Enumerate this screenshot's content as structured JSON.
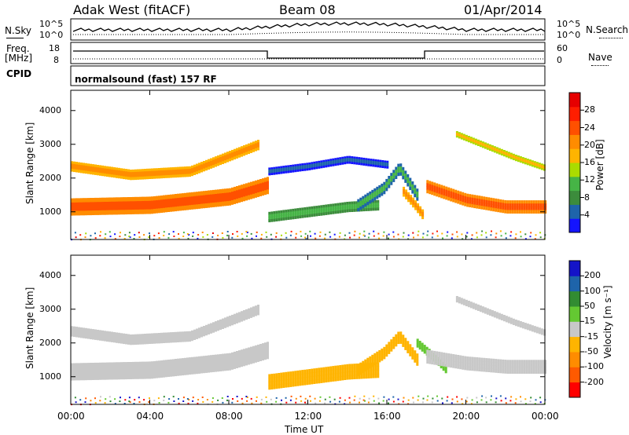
{
  "header": {
    "title": "Adak West (fitACF)",
    "beam": "Beam 08",
    "date": "01/Apr/2014"
  },
  "left_labels": {
    "nsky": "N.Sky",
    "freq": "Freq.",
    "freq_unit": "[MHz]",
    "cpid": "CPID"
  },
  "right_labels": {
    "nsearch": "N.Search",
    "nave": "Nave"
  },
  "noise_axis": {
    "left_ticks": [
      "10^5",
      "10^0"
    ],
    "right_ticks": [
      "10^5",
      "10^0"
    ]
  },
  "freq_axis": {
    "left_ticks": [
      "18",
      "8"
    ],
    "right_ticks": [
      "60",
      "0"
    ]
  },
  "cpid_label": "normalsound (fast) 157 RF",
  "colors": {
    "power": [
      "#1414ff",
      "#1e64aa",
      "#3c8c3c",
      "#46b446",
      "#aadc00",
      "#ffb400",
      "#ff8c00",
      "#ff5000",
      "#ff1e00",
      "#e60000"
    ],
    "velocity": [
      "#ff0000",
      "#ff5a00",
      "#ff8c00",
      "#ffb400",
      "#c8c8c8",
      "#64c832",
      "#328c32",
      "#1e64aa",
      "#1414c8"
    ]
  },
  "chart_data": [
    {
      "type": "heatmap",
      "name": "power-panel",
      "ylabel": "Slant Range [km]",
      "colorbar_label": "Power [dB]",
      "colorbar_ticks": [
        "28",
        "24",
        "20",
        "16",
        "12",
        "8",
        "4"
      ],
      "y_ticks": [
        "4000",
        "3000",
        "2000",
        "1000"
      ],
      "ylim": [
        180,
        4600
      ],
      "xlim": [
        0,
        24
      ],
      "bands": [
        {
          "x": [
            0,
            4,
            8,
            10
          ],
          "y": [
            1150,
            1200,
            1450,
            1800
          ],
          "thickness": 500,
          "value": 27
        },
        {
          "x": [
            0,
            3,
            6,
            9.5
          ],
          "y": [
            2350,
            2100,
            2200,
            3000
          ],
          "thickness": 300,
          "value": 22
        },
        {
          "x": [
            10,
            12,
            14,
            15.5
          ],
          "y": [
            850,
            1000,
            1150,
            1200
          ],
          "thickness": 300,
          "value": 14
        },
        {
          "x": [
            10,
            12,
            14,
            16
          ],
          "y": [
            2200,
            2350,
            2550,
            2400
          ],
          "thickness": 220,
          "value": 8
        },
        {
          "x": [
            14.5,
            15.8,
            16.6,
            17.5
          ],
          "y": [
            1200,
            1700,
            2300,
            1500
          ],
          "thickness": 350,
          "value": 12
        },
        {
          "x": [
            16.8,
            17.4,
            17.8
          ],
          "y": [
            1600,
            1200,
            900
          ],
          "thickness": 280,
          "value": 24
        },
        {
          "x": [
            18,
            20,
            22,
            24
          ],
          "y": [
            1750,
            1350,
            1150,
            1150
          ],
          "thickness": 380,
          "value": 27
        },
        {
          "x": [
            19.5,
            21,
            22.5,
            24
          ],
          "y": [
            3300,
            2950,
            2600,
            2300
          ],
          "thickness": 180,
          "value": 20
        }
      ]
    },
    {
      "type": "heatmap",
      "name": "velocity-panel",
      "ylabel": "Slant Range [km]",
      "colorbar_label": "Velocity [m s⁻¹]",
      "colorbar_ticks": [
        "200",
        "100",
        "50",
        "15",
        "-15",
        "-50",
        "-100",
        "-200"
      ],
      "y_ticks": [
        "4000",
        "3000",
        "2000",
        "1000"
      ],
      "ylim": [
        180,
        4600
      ],
      "xlim": [
        0,
        24
      ],
      "xlabel": "Time UT",
      "x_ticks": [
        "00:00",
        "04:00",
        "08:00",
        "12:00",
        "16:00",
        "20:00",
        "00:00"
      ],
      "bands": [
        {
          "x": [
            0,
            4,
            8,
            10
          ],
          "y": [
            1150,
            1200,
            1450,
            1800
          ],
          "thickness": 500,
          "value": 0
        },
        {
          "x": [
            0,
            3,
            6,
            9.5
          ],
          "y": [
            2350,
            2100,
            2200,
            3000
          ],
          "thickness": 300,
          "value": 0
        },
        {
          "x": [
            10,
            12,
            14,
            15.5
          ],
          "y": [
            850,
            1000,
            1150,
            1200
          ],
          "thickness": 450,
          "value": -30
        },
        {
          "x": [
            14.5,
            15.8,
            16.6,
            17.5
          ],
          "y": [
            1200,
            1700,
            2200,
            1500
          ],
          "thickness": 350,
          "value": -40
        },
        {
          "x": [
            17.5,
            18.5,
            19
          ],
          "y": [
            2000,
            1500,
            1200
          ],
          "thickness": 250,
          "value": 40
        },
        {
          "x": [
            18,
            20,
            22,
            24
          ],
          "y": [
            1600,
            1400,
            1300,
            1300
          ],
          "thickness": 400,
          "value": 0
        },
        {
          "x": [
            19.5,
            21,
            22.5,
            24
          ],
          "y": [
            3300,
            2950,
            2600,
            2300
          ],
          "thickness": 180,
          "value": 0
        }
      ]
    }
  ]
}
